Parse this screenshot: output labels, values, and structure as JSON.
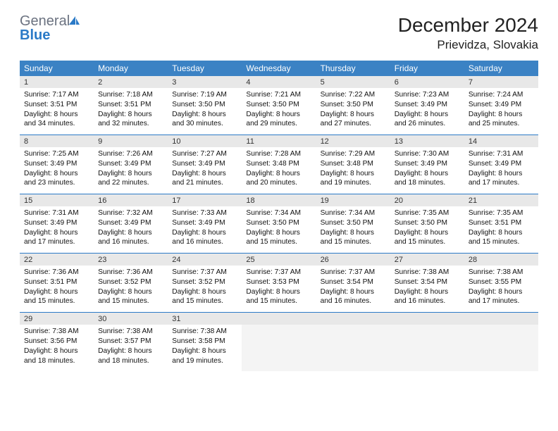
{
  "brand": {
    "word1": "General",
    "word2": "Blue"
  },
  "title": "December 2024",
  "location": "Prievidza, Slovakia",
  "colors": {
    "header_bg": "#3b82c4",
    "header_text": "#ffffff",
    "daynum_bg": "#e8e8e8",
    "row_divider": "#2b7ac7",
    "brand_gray": "#6b7280",
    "brand_blue": "#2b7ac7"
  },
  "day_headers": [
    "Sunday",
    "Monday",
    "Tuesday",
    "Wednesday",
    "Thursday",
    "Friday",
    "Saturday"
  ],
  "weeks": [
    {
      "nums": [
        "1",
        "2",
        "3",
        "4",
        "5",
        "6",
        "7"
      ],
      "cells": [
        {
          "sr": "7:17 AM",
          "ss": "3:51 PM",
          "dl": "8 hours and 34 minutes."
        },
        {
          "sr": "7:18 AM",
          "ss": "3:51 PM",
          "dl": "8 hours and 32 minutes."
        },
        {
          "sr": "7:19 AM",
          "ss": "3:50 PM",
          "dl": "8 hours and 30 minutes."
        },
        {
          "sr": "7:21 AM",
          "ss": "3:50 PM",
          "dl": "8 hours and 29 minutes."
        },
        {
          "sr": "7:22 AM",
          "ss": "3:50 PM",
          "dl": "8 hours and 27 minutes."
        },
        {
          "sr": "7:23 AM",
          "ss": "3:49 PM",
          "dl": "8 hours and 26 minutes."
        },
        {
          "sr": "7:24 AM",
          "ss": "3:49 PM",
          "dl": "8 hours and 25 minutes."
        }
      ]
    },
    {
      "nums": [
        "8",
        "9",
        "10",
        "11",
        "12",
        "13",
        "14"
      ],
      "cells": [
        {
          "sr": "7:25 AM",
          "ss": "3:49 PM",
          "dl": "8 hours and 23 minutes."
        },
        {
          "sr": "7:26 AM",
          "ss": "3:49 PM",
          "dl": "8 hours and 22 minutes."
        },
        {
          "sr": "7:27 AM",
          "ss": "3:49 PM",
          "dl": "8 hours and 21 minutes."
        },
        {
          "sr": "7:28 AM",
          "ss": "3:48 PM",
          "dl": "8 hours and 20 minutes."
        },
        {
          "sr": "7:29 AM",
          "ss": "3:48 PM",
          "dl": "8 hours and 19 minutes."
        },
        {
          "sr": "7:30 AM",
          "ss": "3:49 PM",
          "dl": "8 hours and 18 minutes."
        },
        {
          "sr": "7:31 AM",
          "ss": "3:49 PM",
          "dl": "8 hours and 17 minutes."
        }
      ]
    },
    {
      "nums": [
        "15",
        "16",
        "17",
        "18",
        "19",
        "20",
        "21"
      ],
      "cells": [
        {
          "sr": "7:31 AM",
          "ss": "3:49 PM",
          "dl": "8 hours and 17 minutes."
        },
        {
          "sr": "7:32 AM",
          "ss": "3:49 PM",
          "dl": "8 hours and 16 minutes."
        },
        {
          "sr": "7:33 AM",
          "ss": "3:49 PM",
          "dl": "8 hours and 16 minutes."
        },
        {
          "sr": "7:34 AM",
          "ss": "3:50 PM",
          "dl": "8 hours and 15 minutes."
        },
        {
          "sr": "7:34 AM",
          "ss": "3:50 PM",
          "dl": "8 hours and 15 minutes."
        },
        {
          "sr": "7:35 AM",
          "ss": "3:50 PM",
          "dl": "8 hours and 15 minutes."
        },
        {
          "sr": "7:35 AM",
          "ss": "3:51 PM",
          "dl": "8 hours and 15 minutes."
        }
      ]
    },
    {
      "nums": [
        "22",
        "23",
        "24",
        "25",
        "26",
        "27",
        "28"
      ],
      "cells": [
        {
          "sr": "7:36 AM",
          "ss": "3:51 PM",
          "dl": "8 hours and 15 minutes."
        },
        {
          "sr": "7:36 AM",
          "ss": "3:52 PM",
          "dl": "8 hours and 15 minutes."
        },
        {
          "sr": "7:37 AM",
          "ss": "3:52 PM",
          "dl": "8 hours and 15 minutes."
        },
        {
          "sr": "7:37 AM",
          "ss": "3:53 PM",
          "dl": "8 hours and 15 minutes."
        },
        {
          "sr": "7:37 AM",
          "ss": "3:54 PM",
          "dl": "8 hours and 16 minutes."
        },
        {
          "sr": "7:38 AM",
          "ss": "3:54 PM",
          "dl": "8 hours and 16 minutes."
        },
        {
          "sr": "7:38 AM",
          "ss": "3:55 PM",
          "dl": "8 hours and 17 minutes."
        }
      ]
    },
    {
      "nums": [
        "29",
        "30",
        "31",
        "",
        "",
        "",
        ""
      ],
      "cells": [
        {
          "sr": "7:38 AM",
          "ss": "3:56 PM",
          "dl": "8 hours and 18 minutes."
        },
        {
          "sr": "7:38 AM",
          "ss": "3:57 PM",
          "dl": "8 hours and 18 minutes."
        },
        {
          "sr": "7:38 AM",
          "ss": "3:58 PM",
          "dl": "8 hours and 19 minutes."
        },
        null,
        null,
        null,
        null
      ]
    }
  ],
  "labels": {
    "sunrise": "Sunrise: ",
    "sunset": "Sunset: ",
    "daylight": "Daylight: "
  }
}
